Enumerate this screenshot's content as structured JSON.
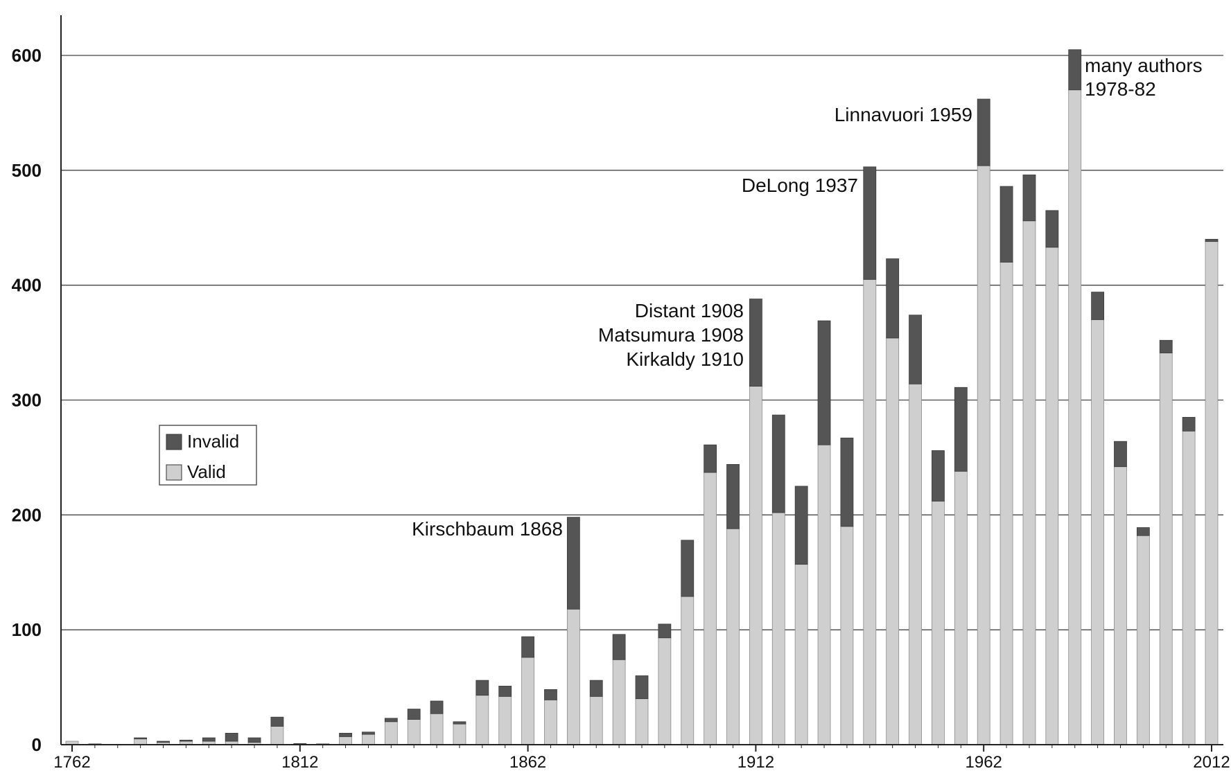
{
  "colors": {
    "invalid": "#555555",
    "valid": "#cfcfcf",
    "grid": "#444444",
    "axis": "#222222"
  },
  "chart_data": {
    "type": "bar",
    "stacked": true,
    "title": "",
    "xlabel": "",
    "ylabel": "",
    "ylim": [
      0,
      600
    ],
    "yticks": [
      0,
      100,
      200,
      300,
      400,
      500,
      600
    ],
    "xlim": [
      1760,
      2015
    ],
    "xtick_labels": [
      "1762",
      "1812",
      "1862",
      "1912",
      "1962",
      "2012"
    ],
    "grid": "horizontal",
    "legend": {
      "placement": "center-left",
      "entries": [
        {
          "name": "Invalid",
          "color": "#555555"
        },
        {
          "name": "Valid",
          "color": "#cfcfcf"
        }
      ]
    },
    "x": [
      1762,
      1767,
      1772,
      1777,
      1782,
      1787,
      1792,
      1797,
      1802,
      1807,
      1812,
      1817,
      1822,
      1827,
      1832,
      1837,
      1842,
      1847,
      1852,
      1857,
      1862,
      1867,
      1872,
      1877,
      1882,
      1887,
      1892,
      1897,
      1902,
      1907,
      1912,
      1917,
      1922,
      1927,
      1932,
      1937,
      1942,
      1947,
      1952,
      1957,
      1962,
      1967,
      1972,
      1977,
      1982,
      1987,
      1992,
      1997,
      2002,
      2007,
      2012
    ],
    "series": [
      {
        "name": "Valid",
        "values": [
          3,
          1,
          0,
          5,
          2,
          3,
          3,
          3,
          2,
          16,
          0,
          1,
          7,
          9,
          20,
          22,
          27,
          18,
          43,
          42,
          76,
          39,
          118,
          42,
          74,
          40,
          93,
          129,
          237,
          188,
          312,
          202,
          157,
          261,
          190,
          405,
          354,
          314,
          212,
          238,
          504,
          420,
          456,
          433,
          570,
          370,
          242,
          182,
          341,
          273,
          438
        ]
      },
      {
        "name": "Invalid",
        "values": [
          0,
          0,
          0,
          1,
          1,
          1,
          3,
          7,
          4,
          8,
          1,
          0,
          3,
          2,
          3,
          9,
          11,
          2,
          13,
          9,
          18,
          9,
          80,
          14,
          22,
          20,
          12,
          49,
          24,
          56,
          76,
          85,
          68,
          108,
          77,
          98,
          69,
          60,
          44,
          73,
          58,
          66,
          40,
          32,
          35,
          24,
          22,
          7,
          11,
          12,
          2
        ]
      }
    ],
    "annotations": [
      {
        "text": "Kirschbaum 1868"
      },
      {
        "text": "Distant 1908"
      },
      {
        "text": "Matsumura 1908"
      },
      {
        "text": "Kirkaldy 1910"
      },
      {
        "text": "DeLong 1937"
      },
      {
        "text": "Linnavuori 1959"
      },
      {
        "text": "many authors"
      },
      {
        "text": "1978-82"
      }
    ]
  }
}
